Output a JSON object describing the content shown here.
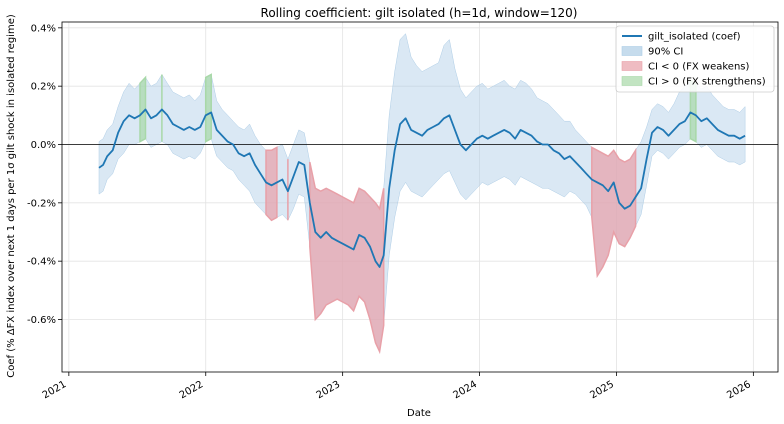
{
  "chart_data": {
    "type": "line",
    "title": "Rolling coefficient: gilt isolated (h=1d, window=120)",
    "xlabel": "Date",
    "ylabel": "Coef (% ΔFX index over next 1 days per 1σ gilt shock in isolated regime)",
    "xlim": [
      2020.95,
      2026.18
    ],
    "ylim": [
      -0.78,
      0.42
    ],
    "x_ticks": [
      {
        "value": 2021,
        "label": "2021"
      },
      {
        "value": 2022,
        "label": "2022"
      },
      {
        "value": 2023,
        "label": "2023"
      },
      {
        "value": 2024,
        "label": "2024"
      },
      {
        "value": 2025,
        "label": "2025"
      },
      {
        "value": 2026,
        "label": "2026"
      }
    ],
    "y_ticks": [
      {
        "value": 0.4,
        "label": "0.4%"
      },
      {
        "value": 0.2,
        "label": "0.2%"
      },
      {
        "value": 0.0,
        "label": "0.0%"
      },
      {
        "value": -0.2,
        "label": "-0.2%"
      },
      {
        "value": -0.4,
        "label": "-0.4%"
      },
      {
        "value": -0.6,
        "label": "-0.6%"
      }
    ],
    "grid": true,
    "zero_line": 0,
    "legend_position": "top-right",
    "legend": [
      {
        "key": "coef",
        "label": "gilt_isolated (coef)",
        "kind": "line",
        "color": "#1f77b4"
      },
      {
        "key": "ci",
        "label": "90% CI",
        "kind": "patch",
        "color": "#aecde6"
      },
      {
        "key": "neg",
        "label": "CI < 0 (FX weakens)",
        "kind": "patch",
        "color": "#e8a0a8"
      },
      {
        "key": "pos",
        "label": "CI > 0 (FX strengthens)",
        "kind": "patch",
        "color": "#a8d8a8"
      }
    ],
    "series": [
      {
        "name": "gilt_isolated (coef)",
        "x": [
          2021.22,
          2021.25,
          2021.28,
          2021.32,
          2021.36,
          2021.4,
          2021.44,
          2021.48,
          2021.52,
          2021.56,
          2021.6,
          2021.64,
          2021.68,
          2021.72,
          2021.76,
          2021.8,
          2021.84,
          2021.88,
          2021.92,
          2021.96,
          2022.0,
          2022.04,
          2022.08,
          2022.12,
          2022.16,
          2022.2,
          2022.24,
          2022.28,
          2022.32,
          2022.36,
          2022.4,
          2022.44,
          2022.48,
          2022.52,
          2022.56,
          2022.6,
          2022.64,
          2022.68,
          2022.72,
          2022.76,
          2022.8,
          2022.84,
          2022.88,
          2022.92,
          2022.96,
          2023.0,
          2023.04,
          2023.08,
          2023.12,
          2023.16,
          2023.2,
          2023.24,
          2023.27,
          2023.3,
          2023.34,
          2023.38,
          2023.42,
          2023.46,
          2023.5,
          2023.54,
          2023.58,
          2023.62,
          2023.66,
          2023.7,
          2023.74,
          2023.78,
          2023.82,
          2023.86,
          2023.9,
          2023.94,
          2023.98,
          2024.02,
          2024.06,
          2024.1,
          2024.14,
          2024.18,
          2024.22,
          2024.26,
          2024.3,
          2024.34,
          2024.38,
          2024.42,
          2024.46,
          2024.5,
          2024.54,
          2024.58,
          2024.62,
          2024.66,
          2024.7,
          2024.74,
          2024.78,
          2024.82,
          2024.86,
          2024.9,
          2024.94,
          2024.98,
          2025.02,
          2025.06,
          2025.1,
          2025.14,
          2025.18,
          2025.22,
          2025.26,
          2025.3,
          2025.34,
          2025.38,
          2025.42,
          2025.46,
          2025.5,
          2025.54,
          2025.58,
          2025.62,
          2025.66,
          2025.7,
          2025.74,
          2025.78,
          2025.82,
          2025.86,
          2025.9,
          2025.94
        ],
        "y": [
          -0.08,
          -0.07,
          -0.04,
          -0.02,
          0.04,
          0.08,
          0.1,
          0.09,
          0.1,
          0.12,
          0.09,
          0.1,
          0.12,
          0.1,
          0.07,
          0.06,
          0.05,
          0.06,
          0.05,
          0.06,
          0.1,
          0.11,
          0.05,
          0.03,
          0.01,
          0.0,
          -0.03,
          -0.04,
          -0.03,
          -0.07,
          -0.1,
          -0.13,
          -0.14,
          -0.13,
          -0.12,
          -0.16,
          -0.11,
          -0.06,
          -0.07,
          -0.2,
          -0.3,
          -0.32,
          -0.3,
          -0.32,
          -0.33,
          -0.34,
          -0.35,
          -0.36,
          -0.31,
          -0.32,
          -0.35,
          -0.4,
          -0.42,
          -0.38,
          -0.15,
          -0.02,
          0.07,
          0.09,
          0.05,
          0.04,
          0.03,
          0.05,
          0.06,
          0.07,
          0.09,
          0.1,
          0.05,
          0.0,
          -0.02,
          0.0,
          0.02,
          0.03,
          0.02,
          0.03,
          0.04,
          0.05,
          0.04,
          0.02,
          0.05,
          0.04,
          0.03,
          0.01,
          0.0,
          0.0,
          -0.02,
          -0.03,
          -0.05,
          -0.04,
          -0.06,
          -0.08,
          -0.1,
          -0.12,
          -0.13,
          -0.14,
          -0.16,
          -0.13,
          -0.2,
          -0.22,
          -0.21,
          -0.18,
          -0.15,
          -0.05,
          0.04,
          0.06,
          0.05,
          0.03,
          0.05,
          0.07,
          0.08,
          0.11,
          0.1,
          0.08,
          0.09,
          0.07,
          0.05,
          0.04,
          0.03,
          0.03,
          0.02,
          0.03
        ],
        "ci_lower": [
          -0.17,
          -0.16,
          -0.12,
          -0.1,
          -0.05,
          -0.03,
          0.0,
          0.0,
          0.01,
          0.02,
          -0.01,
          0.0,
          0.01,
          0.0,
          -0.03,
          -0.04,
          -0.05,
          -0.04,
          -0.05,
          -0.03,
          0.01,
          0.02,
          -0.04,
          -0.06,
          -0.08,
          -0.09,
          -0.12,
          -0.14,
          -0.16,
          -0.2,
          -0.22,
          -0.24,
          -0.26,
          -0.25,
          -0.24,
          -0.26,
          -0.22,
          -0.17,
          -0.18,
          -0.35,
          -0.6,
          -0.58,
          -0.55,
          -0.54,
          -0.53,
          -0.54,
          -0.55,
          -0.57,
          -0.52,
          -0.54,
          -0.6,
          -0.68,
          -0.71,
          -0.62,
          -0.38,
          -0.25,
          -0.16,
          -0.13,
          -0.16,
          -0.17,
          -0.18,
          -0.16,
          -0.14,
          -0.12,
          -0.1,
          -0.09,
          -0.13,
          -0.17,
          -0.19,
          -0.17,
          -0.15,
          -0.13,
          -0.14,
          -0.13,
          -0.12,
          -0.11,
          -0.12,
          -0.14,
          -0.11,
          -0.12,
          -0.13,
          -0.14,
          -0.15,
          -0.15,
          -0.16,
          -0.17,
          -0.18,
          -0.16,
          -0.17,
          -0.19,
          -0.21,
          -0.25,
          -0.45,
          -0.42,
          -0.38,
          -0.3,
          -0.34,
          -0.35,
          -0.32,
          -0.28,
          -0.24,
          -0.14,
          -0.04,
          -0.02,
          -0.03,
          -0.05,
          -0.03,
          -0.01,
          0.0,
          0.02,
          0.01,
          -0.01,
          0.0,
          -0.02,
          -0.04,
          -0.05,
          -0.06,
          -0.06,
          -0.07,
          -0.06
        ],
        "ci_upper": [
          0.01,
          0.02,
          0.05,
          0.07,
          0.13,
          0.18,
          0.21,
          0.19,
          0.21,
          0.23,
          0.2,
          0.21,
          0.24,
          0.21,
          0.18,
          0.17,
          0.16,
          0.17,
          0.15,
          0.17,
          0.23,
          0.24,
          0.15,
          0.12,
          0.1,
          0.08,
          0.06,
          0.05,
          0.07,
          0.03,
          0.0,
          -0.02,
          -0.02,
          -0.01,
          0.0,
          -0.05,
          0.0,
          0.05,
          0.04,
          -0.06,
          -0.15,
          -0.16,
          -0.15,
          -0.16,
          -0.17,
          -0.18,
          -0.19,
          -0.2,
          -0.15,
          -0.16,
          -0.18,
          -0.2,
          -0.22,
          -0.15,
          0.1,
          0.25,
          0.36,
          0.38,
          0.3,
          0.27,
          0.25,
          0.26,
          0.27,
          0.28,
          0.34,
          0.36,
          0.26,
          0.19,
          0.16,
          0.18,
          0.2,
          0.21,
          0.19,
          0.2,
          0.21,
          0.22,
          0.2,
          0.19,
          0.22,
          0.21,
          0.19,
          0.16,
          0.15,
          0.14,
          0.12,
          0.1,
          0.08,
          0.08,
          0.05,
          0.03,
          0.01,
          -0.01,
          -0.02,
          -0.03,
          -0.04,
          -0.02,
          -0.05,
          -0.06,
          -0.05,
          -0.02,
          0.01,
          0.06,
          0.12,
          0.14,
          0.13,
          0.11,
          0.14,
          0.18,
          0.2,
          0.22,
          0.21,
          0.19,
          0.2,
          0.17,
          0.15,
          0.13,
          0.12,
          0.12,
          0.11,
          0.13
        ]
      }
    ],
    "regime_legend_keys": {
      "negative": "neg",
      "positive": "pos"
    }
  }
}
